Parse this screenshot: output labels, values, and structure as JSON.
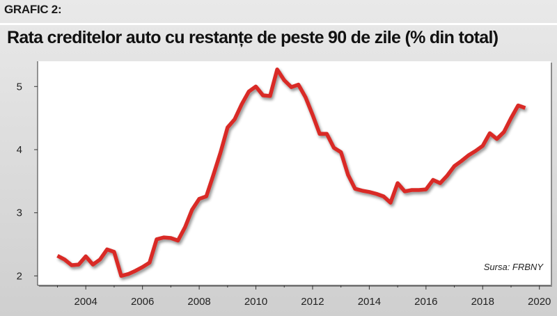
{
  "header": {
    "label": "GRAFIC 2:",
    "title": "Rata creditelor auto cu restanțe de peste 90 de zile (% din total)"
  },
  "source": "Sursa: FRBNY",
  "colors": {
    "line": "#d92b25",
    "background": "#ffffff"
  },
  "chart_data": {
    "type": "line",
    "title": "Rata creditelor auto cu restanțe de peste 90 de zile (% din total)",
    "xlabel": "",
    "ylabel": "",
    "xlim": [
      2002.3,
      2020.4
    ],
    "ylim": [
      1.85,
      5.4
    ],
    "x_ticks": [
      2004,
      2006,
      2008,
      2010,
      2012,
      2014,
      2016,
      2018,
      2020
    ],
    "y_ticks": [
      2,
      3,
      4,
      5
    ],
    "grid": false,
    "legend": "none",
    "series": [
      {
        "x": [
          2003.0,
          2003.25,
          2003.5,
          2003.75,
          2004.0,
          2004.25,
          2004.5,
          2004.75,
          2005.0,
          2005.25,
          2005.5,
          2005.75,
          2006.0,
          2006.25,
          2006.5,
          2006.75,
          2007.0,
          2007.25,
          2007.5,
          2007.75,
          2008.0,
          2008.25,
          2008.5,
          2008.75,
          2009.0,
          2009.25,
          2009.5,
          2009.75,
          2010.0,
          2010.25,
          2010.5,
          2010.75,
          2011.0,
          2011.25,
          2011.5,
          2011.75,
          2012.0,
          2012.25,
          2012.5,
          2012.75,
          2013.0,
          2013.25,
          2013.5,
          2013.75,
          2014.0,
          2014.25,
          2014.5,
          2014.75,
          2015.0,
          2015.25,
          2015.5,
          2015.75,
          2016.0,
          2016.25,
          2016.5,
          2016.75,
          2017.0,
          2017.25,
          2017.5,
          2017.75,
          2018.0,
          2018.25,
          2018.5,
          2018.75,
          2019.0,
          2019.25,
          2019.5
        ],
        "y": [
          2.32,
          2.26,
          2.17,
          2.18,
          2.31,
          2.18,
          2.26,
          2.42,
          2.38,
          2.0,
          2.03,
          2.08,
          2.14,
          2.21,
          2.58,
          2.61,
          2.6,
          2.56,
          2.77,
          3.05,
          3.22,
          3.26,
          3.6,
          3.95,
          4.35,
          4.48,
          4.72,
          4.92,
          5.0,
          4.86,
          4.85,
          5.27,
          5.1,
          4.99,
          5.03,
          4.83,
          4.55,
          4.25,
          4.25,
          4.03,
          3.96,
          3.6,
          3.38,
          3.35,
          3.33,
          3.3,
          3.26,
          3.16,
          3.47,
          3.34,
          3.36,
          3.36,
          3.37,
          3.52,
          3.47,
          3.59,
          3.74,
          3.82,
          3.91,
          3.98,
          4.06,
          4.26,
          4.17,
          4.28,
          4.5,
          4.7,
          4.66
        ]
      }
    ]
  }
}
